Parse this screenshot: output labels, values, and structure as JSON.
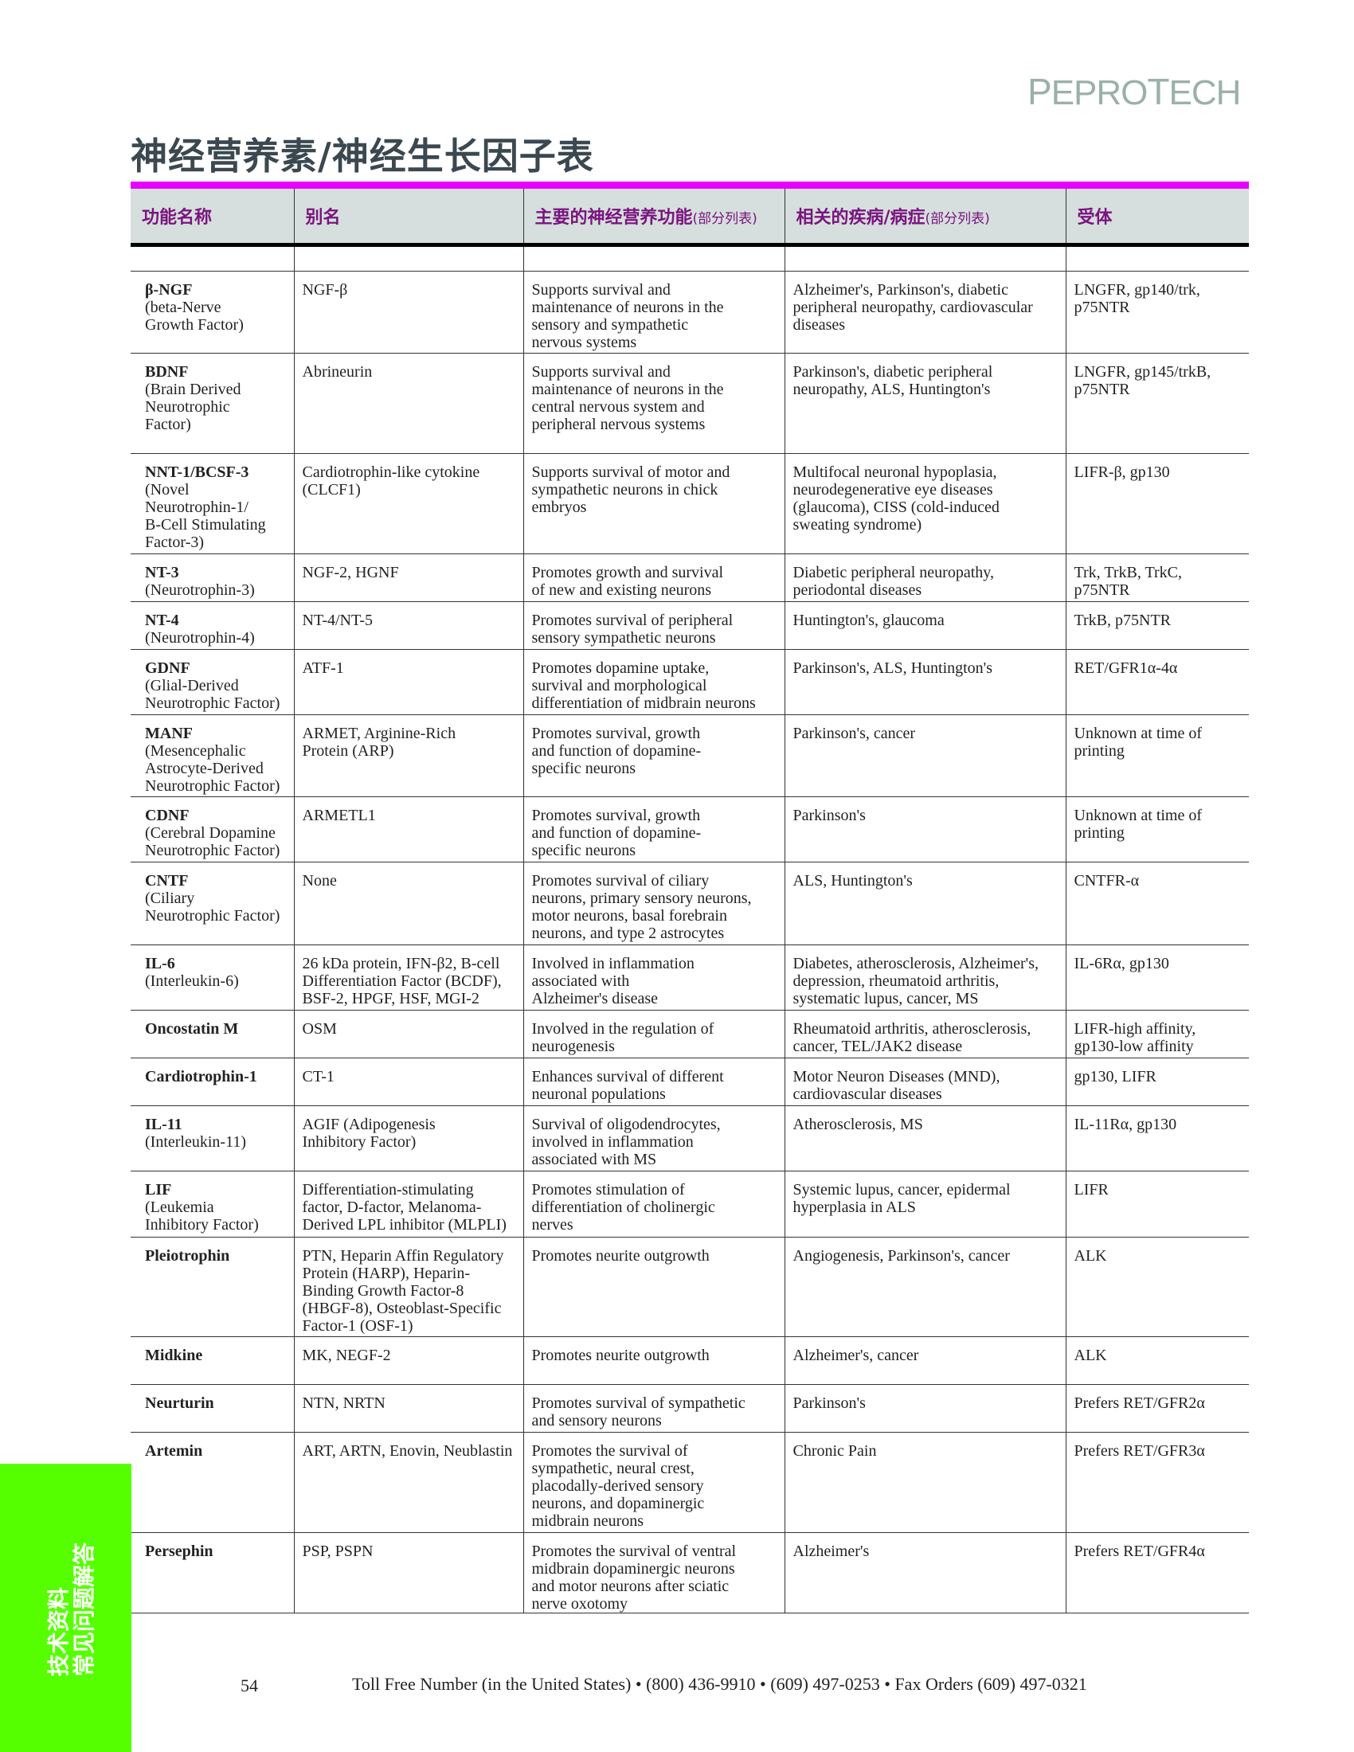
{
  "logo": "PeproTech",
  "title": "神经营养素/神经生长因子表",
  "side_tab": "技术资料\n常见问题解答",
  "headers": [
    {
      "label": "功能名称",
      "note": ""
    },
    {
      "label": "别名",
      "note": ""
    },
    {
      "label": "主要的神经营养功能",
      "note": "(部分列表)"
    },
    {
      "label": "相关的疾病/病症",
      "note": "(部分列表)"
    },
    {
      "label": "受体",
      "note": ""
    }
  ],
  "rows": [
    {
      "name": "β-NGF",
      "full": "(beta-Nerve\nGrowth Factor)",
      "alias": "NGF-β",
      "function": "Supports survival and\nmaintenance of neurons in the\nsensory and sympathetic\nnervous systems",
      "disease": "Alzheimer's, Parkinson's, diabetic\nperipheral neuropathy, cardiovascular\ndiseases",
      "receptor": "LNGFR, gp140/trk,\np75NTR"
    },
    {
      "name": "BDNF",
      "full": "(Brain Derived\nNeurotrophic\nFactor)",
      "alias": "Abrineurin",
      "function": "Supports survival and\nmaintenance of neurons in the\ncentral nervous system and\nperipheral nervous systems",
      "disease": "Parkinson's, diabetic peripheral\nneuropathy, ALS, Huntington's",
      "receptor": "LNGFR, gp145/trkB,\np75NTR"
    },
    {
      "name": "NNT-1/BCSF-3",
      "full": "(Novel\nNeurotrophin-1/\nB-Cell Stimulating\nFactor-3)",
      "alias": "Cardiotrophin-like cytokine\n(CLCF1)",
      "function": "Supports survival of motor and\nsympathetic neurons in chick\nembryos",
      "disease": "Multifocal neuronal hypoplasia,\nneurodegenerative eye diseases\n(glaucoma), CISS (cold-induced\nsweating syndrome)",
      "receptor": "LIFR-β, gp130"
    },
    {
      "name": "NT-3",
      "full": "(Neurotrophin-3)",
      "alias": "NGF-2, HGNF",
      "function": "Promotes growth and survival\nof new and existing neurons",
      "disease": "Diabetic peripheral neuropathy,\nperiodontal diseases",
      "receptor": "Trk, TrkB, TrkC,\np75NTR"
    },
    {
      "name": "NT-4",
      "full": "(Neurotrophin-4)",
      "alias": "NT-4/NT-5",
      "function": "Promotes survival of peripheral\nsensory sympathetic neurons",
      "disease": "Huntington's, glaucoma",
      "receptor": "TrkB, p75NTR"
    },
    {
      "name": "GDNF",
      "full": "(Glial-Derived\nNeurotrophic Factor)",
      "alias": "ATF-1",
      "function": "Promotes dopamine uptake,\nsurvival and morphological\ndifferentiation of midbrain neurons",
      "disease": "Parkinson's, ALS, Huntington's",
      "receptor": "RET/GFR1α-4α"
    },
    {
      "name": "MANF",
      "full": "(Mesencephalic\nAstrocyte-Derived\nNeurotrophic Factor)",
      "alias": "ARMET, Arginine-Rich\nProtein (ARP)",
      "function": "Promotes survival, growth\nand function of dopamine-\nspecific neurons",
      "disease": "Parkinson's, cancer",
      "receptor": "Unknown at time of\nprinting"
    },
    {
      "name": "CDNF",
      "full": "(Cerebral Dopamine\nNeurotrophic Factor)",
      "alias": "ARMETL1",
      "function": "Promotes survival, growth\nand function of dopamine-\nspecific neurons",
      "disease": "Parkinson's",
      "receptor": "Unknown at time of\nprinting"
    },
    {
      "name": "CNTF",
      "full": "(Ciliary\nNeurotrophic Factor)",
      "alias": "None",
      "function": "Promotes survival of ciliary\nneurons, primary sensory neurons,\nmotor neurons, basal forebrain\nneurons, and type 2 astrocytes",
      "disease": "ALS, Huntington's",
      "receptor": "CNTFR-α"
    },
    {
      "name": "IL-6",
      "full": "(Interleukin-6)",
      "alias": "26 kDa protein, IFN-β2, B-cell\nDifferentiation Factor (BCDF),\nBSF-2, HPGF, HSF, MGI-2",
      "function": "Involved in inflammation\nassociated with\nAlzheimer's disease",
      "disease": "Diabetes, atherosclerosis, Alzheimer's,\ndepression, rheumatoid arthritis,\nsystematic lupus, cancer, MS",
      "receptor": "IL-6Rα, gp130"
    },
    {
      "name": "Oncostatin M",
      "full": "",
      "alias": "OSM",
      "function": "Involved in the regulation of\nneurogenesis",
      "disease": "Rheumatoid arthritis, atherosclerosis,\ncancer, TEL/JAK2 disease",
      "receptor": "LIFR-high affinity,\ngp130-low affinity"
    },
    {
      "name": "Cardiotrophin-1",
      "full": "",
      "alias": "CT-1",
      "function": "Enhances survival of different\nneuronal populations",
      "disease": "Motor Neuron Diseases (MND),\ncardiovascular diseases",
      "receptor": "gp130, LIFR"
    },
    {
      "name": "IL-11",
      "full": "(Interleukin-11)",
      "alias": "AGIF (Adipogenesis\nInhibitory Factor)",
      "function": "Survival of oligodendrocytes,\ninvolved in inflammation\nassociated with MS",
      "disease": "Atherosclerosis, MS",
      "receptor": "IL-11Rα, gp130"
    },
    {
      "name": "LIF",
      "full": "(Leukemia\nInhibitory Factor)",
      "alias": "Differentiation-stimulating\nfactor, D-factor, Melanoma-\nDerived LPL inhibitor (MLPLI)",
      "function": "Promotes stimulation of\ndifferentiation of cholinergic\nnerves",
      "disease": "Systemic lupus, cancer, epidermal\nhyperplasia in ALS",
      "receptor": "LIFR"
    },
    {
      "name": "Pleiotrophin",
      "full": "",
      "alias": "PTN, Heparin Affin Regulatory\nProtein (HARP), Heparin-\nBinding Growth Factor-8\n(HBGF-8), Osteoblast-Specific\nFactor-1 (OSF-1)",
      "function": "Promotes neurite outgrowth",
      "disease": "Angiogenesis, Parkinson's, cancer",
      "receptor": "ALK"
    },
    {
      "name": "Midkine",
      "full": "",
      "alias": "MK, NEGF-2",
      "function": "Promotes neurite outgrowth",
      "disease": "Alzheimer's, cancer",
      "receptor": "ALK"
    },
    {
      "name": "Neurturin",
      "full": "",
      "alias": "NTN, NRTN",
      "function": "Promotes survival of sympathetic\nand sensory neurons",
      "disease": "Parkinson's",
      "receptor": "Prefers RET/GFR2α"
    },
    {
      "name": "Artemin",
      "full": "",
      "alias": "ART, ARTN, Enovin, Neublastin",
      "function": "Promotes the survival of\nsympathetic, neural crest,\nplacodally-derived sensory\nneurons, and dopaminergic\nmidbrain neurons",
      "disease": "Chronic Pain",
      "receptor": "Prefers RET/GFR3α"
    },
    {
      "name": "Persephin",
      "full": "",
      "alias": "PSP, PSPN",
      "function": "Promotes the survival of ventral\nmidbrain dopaminergic neurons\nand motor neurons after sciatic\nnerve oxotomy",
      "disease": "Alzheimer's",
      "receptor": "Prefers RET/GFR4α"
    }
  ],
  "footer": {
    "page_number": "54",
    "contact": "Toll Free Number (in the United States) • (800) 436-9910 • (609) 497-0253 • Fax Orders (609) 497-0321"
  },
  "colors": {
    "accent_bar": "#e600ff",
    "header_bg": "#d6dfdd",
    "header_text": "#7a1480",
    "side_tab": "#55ff00",
    "logo": "#9bb0aa",
    "title": "#3b4850"
  }
}
